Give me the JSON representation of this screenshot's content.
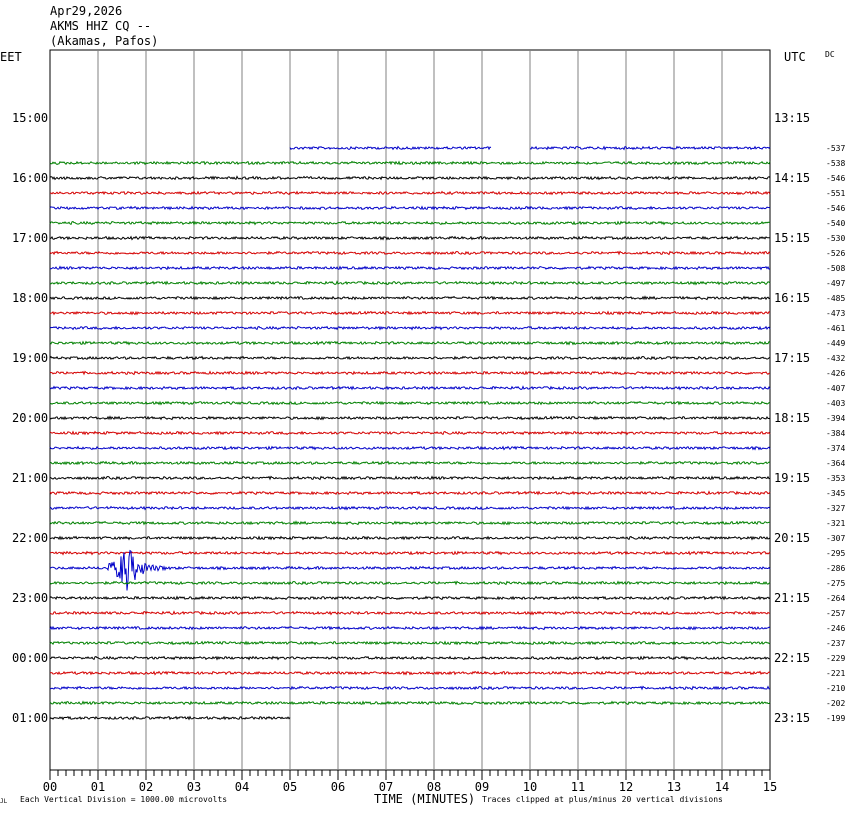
{
  "header": {
    "date": "Apr29,2026",
    "station": "AKMS HHZ CQ --",
    "location": "(Akamas, Pafos)"
  },
  "labels": {
    "left_zone": "EET",
    "right_zone": "UTC",
    "dc": "DC",
    "x_axis_title": "TIME (MINUTES)",
    "footer_left": "Each Vertical Division = 1000.00 microvolts",
    "footer_right": "Traces clipped at plus/minus 20 vertical divisions",
    "corner_mark": "JL"
  },
  "chart_data": {
    "type": "line",
    "title": "",
    "xlabel": "TIME (MINUTES)",
    "xlim": [
      0,
      15
    ],
    "x_ticks": [
      "00",
      "01",
      "02",
      "03",
      "04",
      "05",
      "06",
      "07",
      "08",
      "09",
      "10",
      "11",
      "12",
      "13",
      "14",
      "15"
    ],
    "hour_labels_left": [
      "15:00",
      "16:00",
      "17:00",
      "18:00",
      "19:00",
      "20:00",
      "21:00",
      "22:00",
      "23:00",
      "00:00",
      "01:00"
    ],
    "hour_labels_right": [
      "13:15",
      "14:15",
      "15:15",
      "16:15",
      "17:15",
      "18:15",
      "19:15",
      "20:15",
      "21:15",
      "22:15",
      "23:15"
    ],
    "trace_colors": [
      "#0000c8",
      "#008000",
      "#000000",
      "#d40000"
    ],
    "traces": [
      {
        "dc": "-537",
        "color": "#0000c8"
      },
      {
        "dc": "-538",
        "color": "#008000"
      },
      {
        "dc": "-546",
        "color": "#000000"
      },
      {
        "dc": "-551",
        "color": "#d40000"
      },
      {
        "dc": "-546",
        "color": "#0000c8"
      },
      {
        "dc": "-540",
        "color": "#008000"
      },
      {
        "dc": "-530",
        "color": "#000000"
      },
      {
        "dc": "-526",
        "color": "#d40000"
      },
      {
        "dc": "-508",
        "color": "#0000c8"
      },
      {
        "dc": "-497",
        "color": "#008000"
      },
      {
        "dc": "-485",
        "color": "#000000"
      },
      {
        "dc": "-473",
        "color": "#d40000"
      },
      {
        "dc": "-461",
        "color": "#0000c8"
      },
      {
        "dc": "-449",
        "color": "#008000"
      },
      {
        "dc": "-432",
        "color": "#000000"
      },
      {
        "dc": "-426",
        "color": "#d40000"
      },
      {
        "dc": "-407",
        "color": "#0000c8"
      },
      {
        "dc": "-403",
        "color": "#008000"
      },
      {
        "dc": "-394",
        "color": "#000000"
      },
      {
        "dc": "-384",
        "color": "#d40000"
      },
      {
        "dc": "-374",
        "color": "#0000c8"
      },
      {
        "dc": "-364",
        "color": "#008000"
      },
      {
        "dc": "-353",
        "color": "#000000"
      },
      {
        "dc": "-345",
        "color": "#d40000"
      },
      {
        "dc": "-327",
        "color": "#0000c8"
      },
      {
        "dc": "-321",
        "color": "#008000"
      },
      {
        "dc": "-307",
        "color": "#000000"
      },
      {
        "dc": "-295",
        "color": "#d40000"
      },
      {
        "dc": "-286",
        "color": "#0000c8"
      },
      {
        "dc": "-275",
        "color": "#008000"
      },
      {
        "dc": "-264",
        "color": "#000000"
      },
      {
        "dc": "-257",
        "color": "#d40000"
      },
      {
        "dc": "-246",
        "color": "#0000c8"
      },
      {
        "dc": "-237",
        "color": "#008000"
      },
      {
        "dc": "-229",
        "color": "#000000"
      },
      {
        "dc": "-221",
        "color": "#d40000"
      },
      {
        "dc": "-210",
        "color": "#0000c8"
      },
      {
        "dc": "-202",
        "color": "#008000"
      },
      {
        "dc": "-199",
        "color": "#000000"
      }
    ],
    "first_trace_segments": [
      [
        5.0,
        9.2
      ],
      [
        10.0,
        15.0
      ]
    ],
    "last_trace_end_minute": 5.0,
    "event": {
      "trace_index": 28,
      "start_minute": 1.2,
      "end_minute": 2.4,
      "peak_minute": 1.55
    }
  }
}
